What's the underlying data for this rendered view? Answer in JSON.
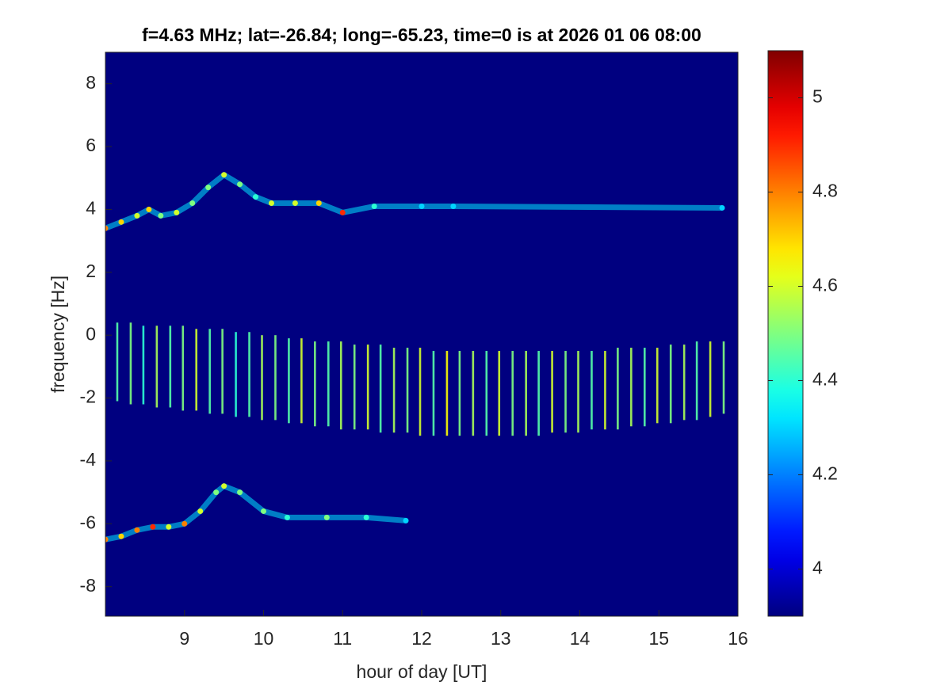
{
  "chart_data": {
    "type": "spectrogram",
    "title": "f=4.63 MHz;  lat=-26.84; long=-65.23, time=0 is at 2026 01 06 08:00",
    "xlabel": "hour of day [UT]",
    "ylabel": "frequency [Hz]",
    "xlim": [
      8,
      16
    ],
    "ylim": [
      -8.94,
      9
    ],
    "xticks": [
      9,
      10,
      11,
      12,
      13,
      14,
      15,
      16
    ],
    "yticks": [
      -8,
      -6,
      -4,
      -2,
      0,
      2,
      4,
      6,
      8
    ],
    "colormap": "jet",
    "colorbar": {
      "clim": [
        3.9,
        5.1
      ],
      "ticks": [
        4,
        4.2,
        4.4,
        4.6,
        4.8,
        5
      ]
    },
    "traces": [
      {
        "x": [
          8.0,
          8.2,
          8.4,
          8.55,
          8.7,
          8.9,
          9.1,
          9.3,
          9.5,
          9.7,
          9.9,
          10.1,
          10.4,
          10.7,
          11.0,
          11.4,
          12.0,
          12.4,
          15.8
        ],
        "y": [
          3.4,
          3.6,
          3.8,
          4.0,
          3.8,
          3.9,
          4.2,
          4.7,
          5.1,
          4.8,
          4.4,
          4.2,
          4.2,
          4.2,
          3.9,
          4.1,
          4.1,
          4.1,
          4.05
        ],
        "values": [
          4.8,
          4.7,
          4.6,
          4.7,
          4.5,
          4.6,
          4.5,
          4.5,
          4.6,
          4.5,
          4.4,
          4.6,
          4.6,
          4.7,
          4.9,
          4.4,
          4.3,
          4.3,
          4.3
        ]
      },
      {
        "x": [
          8.0,
          8.2,
          8.4,
          8.6,
          8.8,
          9.0,
          9.2,
          9.4,
          9.5,
          9.7,
          10.0,
          10.3,
          10.8,
          11.3,
          11.8
        ],
        "y": [
          -6.5,
          -6.4,
          -6.2,
          -6.1,
          -6.1,
          -6.0,
          -5.6,
          -5.0,
          -4.8,
          -5.0,
          -5.6,
          -5.8,
          -5.8,
          -5.8,
          -5.9
        ],
        "values": [
          4.8,
          4.7,
          4.8,
          4.9,
          4.6,
          4.8,
          4.6,
          4.5,
          4.6,
          4.5,
          4.5,
          4.4,
          4.5,
          4.4,
          4.3
        ]
      }
    ],
    "streaks": {
      "x": [
        8.15,
        8.32,
        8.48,
        8.65,
        8.82,
        8.98,
        9.15,
        9.32,
        9.48,
        9.65,
        9.82,
        9.98,
        10.15,
        10.32,
        10.48,
        10.65,
        10.82,
        10.98,
        11.15,
        11.32,
        11.48,
        11.65,
        11.82,
        11.98,
        12.15,
        12.32,
        12.48,
        12.65,
        12.82,
        12.98,
        13.15,
        13.32,
        13.48,
        13.65,
        13.82,
        13.98,
        14.15,
        14.32,
        14.48,
        14.65,
        14.82,
        14.98,
        15.15,
        15.32,
        15.48,
        15.65,
        15.82
      ],
      "y_top": [
        0.4,
        0.4,
        0.3,
        0.3,
        0.3,
        0.3,
        0.2,
        0.2,
        0.2,
        0.1,
        0.1,
        0.0,
        0.0,
        -0.1,
        -0.1,
        -0.2,
        -0.2,
        -0.2,
        -0.3,
        -0.3,
        -0.3,
        -0.4,
        -0.4,
        -0.4,
        -0.5,
        -0.5,
        -0.5,
        -0.5,
        -0.5,
        -0.5,
        -0.5,
        -0.5,
        -0.5,
        -0.5,
        -0.5,
        -0.5,
        -0.5,
        -0.5,
        -0.4,
        -0.4,
        -0.4,
        -0.4,
        -0.3,
        -0.3,
        -0.2,
        -0.2,
        -0.2
      ],
      "y_bottom": [
        -2.1,
        -2.2,
        -2.2,
        -2.3,
        -2.3,
        -2.4,
        -2.4,
        -2.5,
        -2.5,
        -2.6,
        -2.6,
        -2.7,
        -2.7,
        -2.8,
        -2.8,
        -2.9,
        -2.9,
        -3.0,
        -3.0,
        -3.0,
        -3.1,
        -3.1,
        -3.1,
        -3.2,
        -3.2,
        -3.2,
        -3.2,
        -3.2,
        -3.2,
        -3.2,
        -3.2,
        -3.2,
        -3.2,
        -3.1,
        -3.1,
        -3.1,
        -3.0,
        -3.0,
        -3.0,
        -2.9,
        -2.9,
        -2.8,
        -2.8,
        -2.7,
        -2.7,
        -2.6,
        -2.5
      ],
      "values": [
        4.45,
        4.5,
        4.4,
        4.55,
        4.45,
        4.5,
        4.6,
        4.45,
        4.5,
        4.4,
        4.45,
        4.55,
        4.5,
        4.45,
        4.6,
        4.5,
        4.45,
        4.55,
        4.5,
        4.6,
        4.45,
        4.55,
        4.5,
        4.6,
        4.45,
        4.65,
        4.5,
        4.55,
        4.45,
        4.6,
        4.5,
        4.55,
        4.45,
        4.6,
        4.5,
        4.55,
        4.45,
        4.6,
        4.5,
        4.55,
        4.45,
        4.6,
        4.5,
        4.55,
        4.45,
        4.6,
        4.5
      ]
    }
  }
}
